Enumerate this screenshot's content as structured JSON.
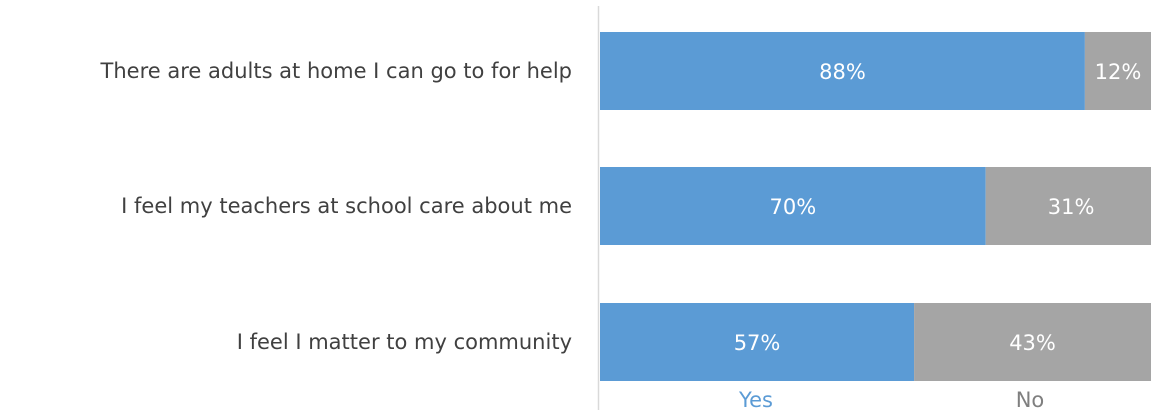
{
  "chart_data": {
    "type": "bar",
    "orientation": "horizontal",
    "stacked": true,
    "categories": [
      "There are adults at home I can go to for help",
      "I feel my teachers at school care about me",
      "I feel I matter to my community"
    ],
    "series": [
      {
        "name": "Yes",
        "values": [
          88,
          70,
          57
        ],
        "labels": [
          "88%",
          "70%",
          "57%"
        ],
        "color": "#5B9BD5"
      },
      {
        "name": "No",
        "values": [
          12,
          31,
          43
        ],
        "labels": [
          "12%",
          "31%",
          "43%"
        ],
        "color": "#A5A5A5"
      }
    ],
    "xlim": [
      0,
      100
    ],
    "grid": false,
    "legend": "bottom",
    "label_color": "#404040",
    "axis_color": "#D9D9D9"
  }
}
